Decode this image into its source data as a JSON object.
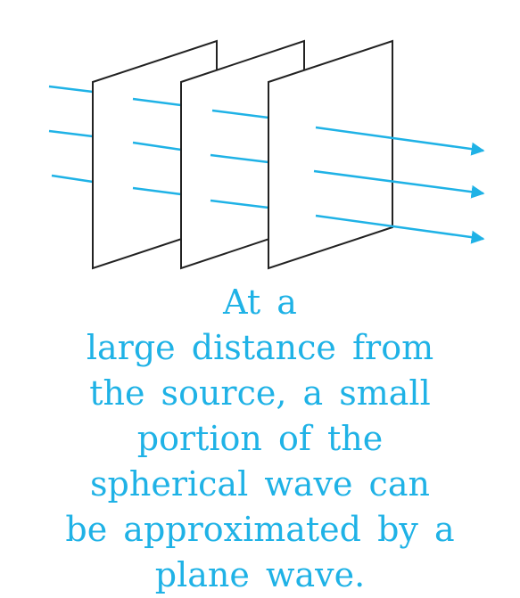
{
  "caption": {
    "lines": [
      "At a",
      "large distance from",
      "the source, a small",
      "portion of the",
      "spherical wave can",
      "be approximated by a",
      "plane wave."
    ]
  },
  "colors": {
    "ray": "#1fb2e6",
    "wavefront_outline": "#222222",
    "wavefront_fill": "#ffffff",
    "caption_text": "#1fb2e6"
  },
  "figure": {
    "wavefront_count": 3,
    "incoming_rays_per_gap": 3,
    "outgoing_rays": 3,
    "outgoing_rays_have_arrowheads": true
  }
}
